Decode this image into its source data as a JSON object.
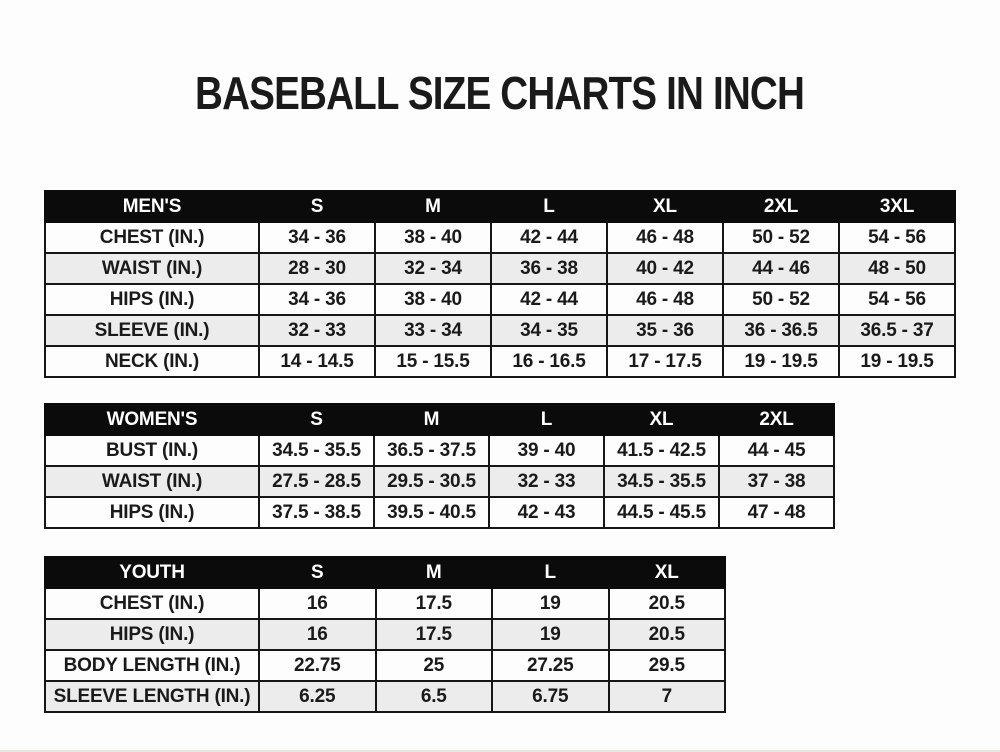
{
  "title": "BASEBALL SIZE CHARTS IN INCH",
  "colors": {
    "page_bg": "#fdfdfd",
    "header_bg": "#0b0b0b",
    "header_text": "#ffffff",
    "row_bg": "#fdfdfd",
    "row_alt": "#ececec",
    "border": "#161616",
    "text": "#1a1a1a"
  },
  "chart_data": [
    {
      "type": "table",
      "title": "MEN'S",
      "unit": "inches",
      "columns": [
        "MEN'S",
        "S",
        "M",
        "L",
        "XL",
        "2XL",
        "3XL"
      ],
      "rows": [
        [
          "CHEST (IN.)",
          "34 - 36",
          "38 - 40",
          "42 - 44",
          "46 - 48",
          "50 - 52",
          "54 - 56"
        ],
        [
          "WAIST (IN.)",
          "28 - 30",
          "32 - 34",
          "36 - 38",
          "40 - 42",
          "44 - 46",
          "48 - 50"
        ],
        [
          "HIPS (IN.)",
          "34 - 36",
          "38 - 40",
          "42 - 44",
          "46 - 48",
          "50 - 52",
          "54 - 56"
        ],
        [
          "SLEEVE (IN.)",
          "32 - 33",
          "33 - 34",
          "34 - 35",
          "35 - 36",
          "36 - 36.5",
          "36.5 - 37"
        ],
        [
          "NECK (IN.)",
          "14 - 14.5",
          "15 - 15.5",
          "16 - 16.5",
          "17 - 17.5",
          "19 - 19.5",
          "19 - 19.5"
        ]
      ]
    },
    {
      "type": "table",
      "title": "WOMEN'S",
      "unit": "inches",
      "columns": [
        "WOMEN'S",
        "S",
        "M",
        "L",
        "XL",
        "2XL"
      ],
      "rows": [
        [
          "BUST (IN.)",
          "34.5 - 35.5",
          "36.5 - 37.5",
          "39 - 40",
          "41.5 - 42.5",
          "44 - 45"
        ],
        [
          "WAIST (IN.)",
          "27.5 - 28.5",
          "29.5 - 30.5",
          "32 - 33",
          "34.5 - 35.5",
          "37 - 38"
        ],
        [
          "HIPS (IN.)",
          "37.5 - 38.5",
          "39.5 - 40.5",
          "42 - 43",
          "44.5 - 45.5",
          "47 - 48"
        ]
      ]
    },
    {
      "type": "table",
      "title": "YOUTH",
      "unit": "inches",
      "columns": [
        "YOUTH",
        "S",
        "M",
        "L",
        "XL"
      ],
      "rows": [
        [
          "CHEST (IN.)",
          "16",
          "17.5",
          "19",
          "20.5"
        ],
        [
          "HIPS (IN.)",
          "16",
          "17.5",
          "19",
          "20.5"
        ],
        [
          "BODY LENGTH (IN.)",
          "22.75",
          "25",
          "27.25",
          "29.5"
        ],
        [
          "SLEEVE LENGTH (IN.)",
          "6.25",
          "6.5",
          "6.75",
          "7"
        ]
      ]
    }
  ]
}
